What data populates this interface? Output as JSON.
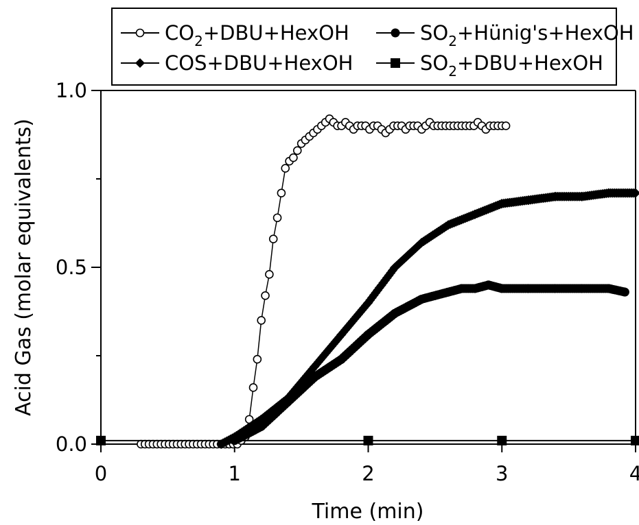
{
  "chart_data": {
    "type": "scatter",
    "title": "",
    "xlabel": "Time (min)",
    "ylabel": "Acid Gas (molar equivalents)",
    "xlim": [
      0,
      4
    ],
    "ylim": [
      0,
      1
    ],
    "x_ticks": [
      "0",
      "1",
      "2",
      "3",
      "4"
    ],
    "y_ticks": [
      "0.0",
      "0.5",
      "1.0"
    ],
    "grid": false,
    "legend_position": "top",
    "legend": [
      {
        "base": "CO",
        "sub": "2",
        "rest": "+DBU+HexOH",
        "marker": "circle-open"
      },
      {
        "base": "SO",
        "sub": "2",
        "rest": "+Hünig's+HexOH",
        "marker": "circle-filled"
      },
      {
        "base": "COS+DBU+HexOH",
        "sub": "",
        "rest": "",
        "marker": "diamond-filled"
      },
      {
        "base": "SO",
        "sub": "2",
        "rest": "+DBU+HexOH",
        "marker": "square-filled"
      }
    ],
    "series": [
      {
        "name": "CO2+DBU+HexOH",
        "marker": "circle-open",
        "x": [
          0.3,
          0.33,
          0.36,
          0.39,
          0.42,
          0.45,
          0.48,
          0.51,
          0.54,
          0.57,
          0.6,
          0.63,
          0.66,
          0.69,
          0.72,
          0.75,
          0.78,
          0.81,
          0.84,
          0.87,
          0.9,
          0.93,
          0.96,
          0.99,
          1.02,
          1.05,
          1.08,
          1.11,
          1.14,
          1.17,
          1.2,
          1.23,
          1.26,
          1.29,
          1.32,
          1.35,
          1.38,
          1.41,
          1.44,
          1.47,
          1.5,
          1.53,
          1.56,
          1.59,
          1.62,
          1.65,
          1.68,
          1.71,
          1.74,
          1.77,
          1.8,
          1.83,
          1.86,
          1.89,
          1.92,
          1.95,
          1.98,
          2.01,
          2.04,
          2.07,
          2.1,
          2.13,
          2.16,
          2.19,
          2.22,
          2.25,
          2.28,
          2.31,
          2.34,
          2.37,
          2.4,
          2.43,
          2.46,
          2.49,
          2.52,
          2.55,
          2.58,
          2.61,
          2.64,
          2.67,
          2.7,
          2.73,
          2.76,
          2.79,
          2.82,
          2.85,
          2.88,
          2.91,
          2.94,
          2.97,
          3.0,
          3.03
        ],
        "y": [
          0,
          0,
          0,
          0,
          0,
          0,
          0,
          0,
          0,
          0,
          0,
          0,
          0,
          0,
          0,
          0,
          0,
          0,
          0,
          0,
          0,
          0,
          0,
          0,
          0.0,
          0.01,
          0.02,
          0.07,
          0.16,
          0.24,
          0.35,
          0.42,
          0.48,
          0.58,
          0.64,
          0.71,
          0.78,
          0.8,
          0.81,
          0.83,
          0.85,
          0.86,
          0.87,
          0.88,
          0.89,
          0.9,
          0.91,
          0.92,
          0.91,
          0.9,
          0.9,
          0.91,
          0.9,
          0.89,
          0.9,
          0.9,
          0.9,
          0.89,
          0.9,
          0.9,
          0.89,
          0.88,
          0.89,
          0.9,
          0.9,
          0.9,
          0.89,
          0.9,
          0.9,
          0.9,
          0.89,
          0.9,
          0.91,
          0.9,
          0.9,
          0.9,
          0.9,
          0.9,
          0.9,
          0.9,
          0.9,
          0.9,
          0.9,
          0.9,
          0.91,
          0.9,
          0.89,
          0.9,
          0.9,
          0.9,
          0.9,
          0.9
        ]
      },
      {
        "name": "SO2+Hünig's+HexOH",
        "marker": "circle-filled",
        "x": [
          1.0,
          1.2,
          1.4,
          1.6,
          1.8,
          2.0,
          2.2,
          2.4,
          2.6,
          2.7,
          2.8,
          2.9,
          3.0,
          3.2,
          3.4,
          3.6,
          3.8,
          3.92
        ],
        "y": [
          0.01,
          0.05,
          0.12,
          0.19,
          0.24,
          0.31,
          0.37,
          0.41,
          0.43,
          0.44,
          0.44,
          0.45,
          0.44,
          0.44,
          0.44,
          0.44,
          0.44,
          0.43
        ]
      },
      {
        "name": "COS+DBU+HexOH",
        "marker": "diamond-filled",
        "x": [
          0.9,
          1.0,
          1.2,
          1.4,
          1.6,
          1.8,
          2.0,
          2.2,
          2.4,
          2.6,
          2.8,
          3.0,
          3.2,
          3.4,
          3.6,
          3.8,
          4.0
        ],
        "y": [
          0.0,
          0.02,
          0.07,
          0.13,
          0.22,
          0.31,
          0.4,
          0.5,
          0.57,
          0.62,
          0.65,
          0.68,
          0.69,
          0.7,
          0.7,
          0.71,
          0.71
        ]
      },
      {
        "name": "SO2+DBU+HexOH",
        "marker": "square-filled",
        "x": [
          0,
          2,
          3,
          4
        ],
        "y": [
          0.01,
          0.01,
          0.01,
          0.01
        ]
      }
    ]
  }
}
